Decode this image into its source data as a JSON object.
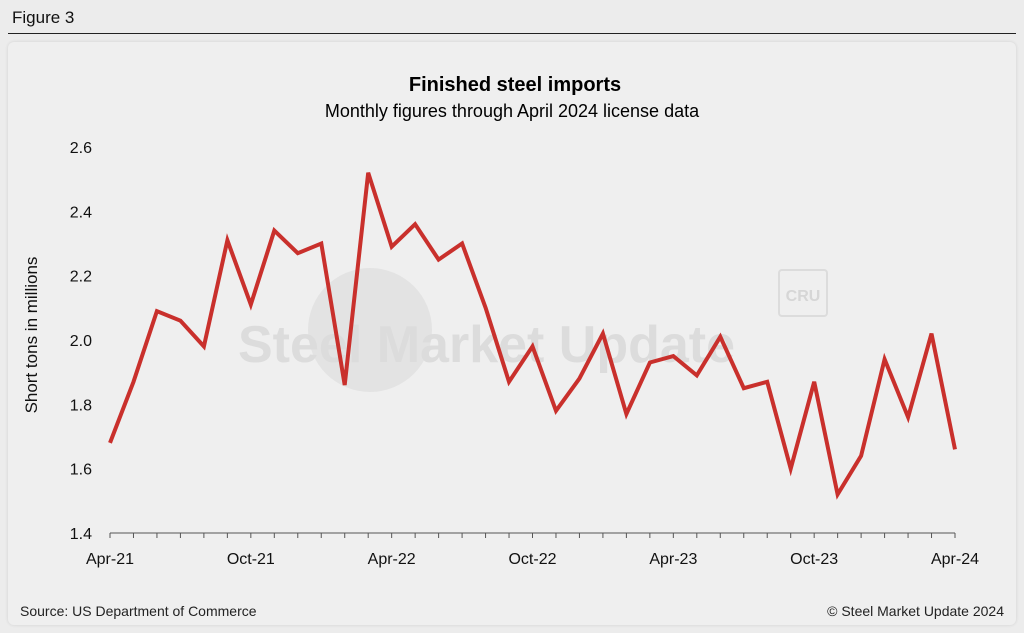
{
  "figure_label": "Figure 3",
  "watermark": {
    "text": "Steel Market Update",
    "badge": "CRU"
  },
  "footer": {
    "source": "Source: US Department of Commerce",
    "copyright": "© Steel Market Update 2024"
  },
  "colors": {
    "line": "#c9302c",
    "background": "#efefef"
  },
  "chart_data": {
    "type": "line",
    "title": "Finished steel imports",
    "subtitle": "Monthly figures through April 2024 license data",
    "xlabel": "",
    "ylabel": "Short tons in millions",
    "ylim": [
      1.4,
      2.6
    ],
    "yticks": [
      "1.4",
      "1.6",
      "1.8",
      "2.0",
      "2.2",
      "2.4",
      "2.6"
    ],
    "xtick_labels": [
      {
        "index": 0,
        "label": "Apr-21"
      },
      {
        "index": 6,
        "label": "Oct-21"
      },
      {
        "index": 12,
        "label": "Apr-22"
      },
      {
        "index": 18,
        "label": "Oct-22"
      },
      {
        "index": 24,
        "label": "Apr-23"
      },
      {
        "index": 30,
        "label": "Oct-23"
      },
      {
        "index": 36,
        "label": "Apr-24"
      }
    ],
    "grid": false,
    "series": [
      {
        "name": "Finished steel imports",
        "x": [
          "Apr-21",
          "May-21",
          "Jun-21",
          "Jul-21",
          "Aug-21",
          "Sep-21",
          "Oct-21",
          "Nov-21",
          "Dec-21",
          "Jan-22",
          "Feb-22",
          "Mar-22",
          "Apr-22",
          "May-22",
          "Jun-22",
          "Jul-22",
          "Aug-22",
          "Sep-22",
          "Oct-22",
          "Nov-22",
          "Dec-22",
          "Jan-23",
          "Feb-23",
          "Mar-23",
          "Apr-23",
          "May-23",
          "Jun-23",
          "Jul-23",
          "Aug-23",
          "Sep-23",
          "Oct-23",
          "Nov-23",
          "Dec-23",
          "Jan-24",
          "Feb-24",
          "Mar-24",
          "Apr-24"
        ],
        "values": [
          1.68,
          1.87,
          2.09,
          2.06,
          1.98,
          2.31,
          2.11,
          2.34,
          2.27,
          2.3,
          1.86,
          2.52,
          2.29,
          2.36,
          2.25,
          2.3,
          2.1,
          1.87,
          1.98,
          1.78,
          1.88,
          2.02,
          1.77,
          1.93,
          1.95,
          1.89,
          2.01,
          1.85,
          1.87,
          1.6,
          1.87,
          1.52,
          1.64,
          1.94,
          1.76,
          2.02,
          1.66
        ]
      }
    ]
  }
}
